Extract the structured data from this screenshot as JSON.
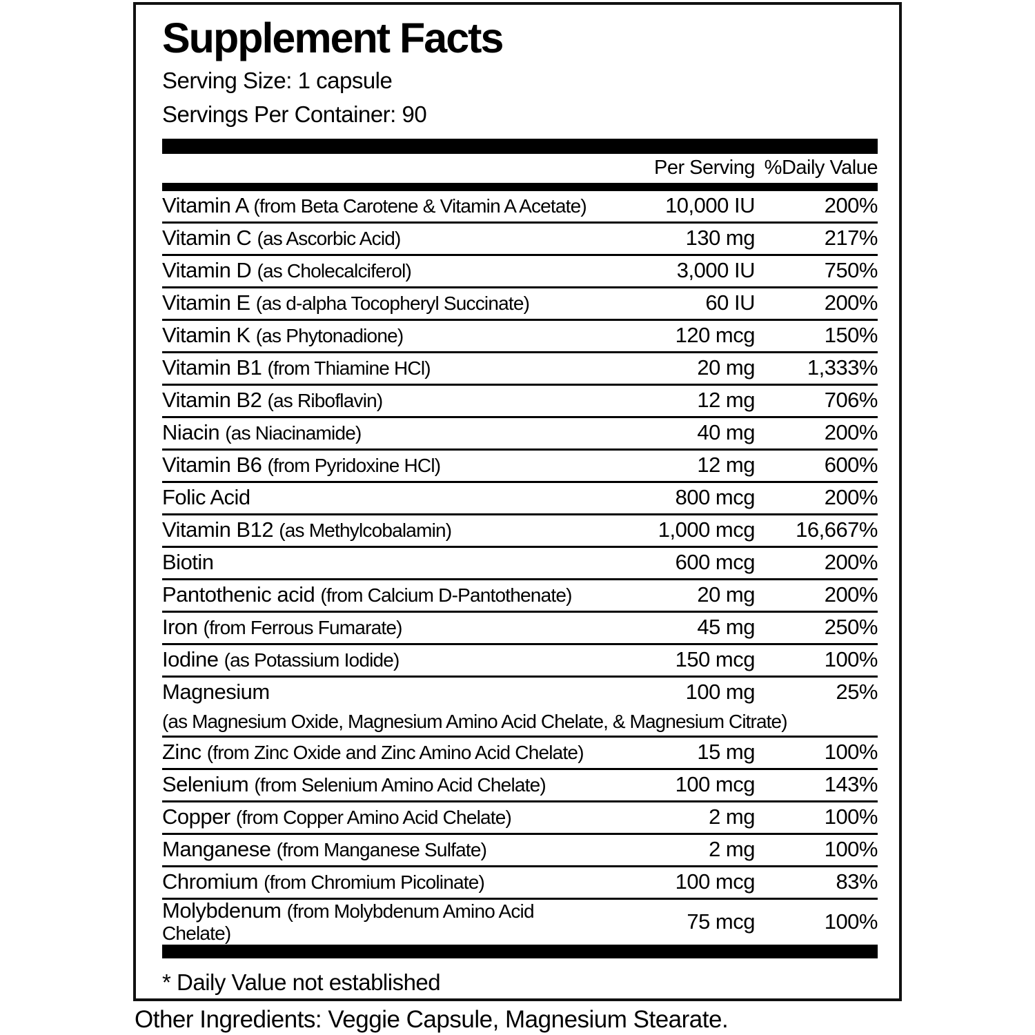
{
  "label": {
    "title": "Supplement Facts",
    "serving_size": "Serving Size: 1 capsule",
    "servings_per_container": "Servings Per Container: 90",
    "columns": {
      "per_serving": "Per Serving",
      "daily_value": "%Daily Value"
    },
    "rows": [
      {
        "name": "Vitamin A",
        "detail": "(from Beta Carotene & Vitamin A Acetate)",
        "amount": "10,000 IU",
        "daily_value": "200%"
      },
      {
        "name": "Vitamin C",
        "detail": "(as Ascorbic Acid)",
        "amount": "130 mg",
        "daily_value": "217%"
      },
      {
        "name": "Vitamin D",
        "detail": "(as Cholecalciferol)",
        "amount": "3,000 IU",
        "daily_value": "750%"
      },
      {
        "name": "Vitamin E",
        "detail": "(as d-alpha Tocopheryl Succinate)",
        "amount": "60 IU",
        "daily_value": "200%"
      },
      {
        "name": "Vitamin K",
        "detail": "(as Phytonadione)",
        "amount": "120 mcg",
        "daily_value": "150%"
      },
      {
        "name": "Vitamin B1",
        "detail": "(from Thiamine HCl)",
        "amount": "20 mg",
        "daily_value": "1,333%"
      },
      {
        "name": "Vitamin B2",
        "detail": "(as Riboflavin)",
        "amount": "12 mg",
        "daily_value": "706%"
      },
      {
        "name": "Niacin",
        "detail": "(as Niacinamide)",
        "amount": "40 mg",
        "daily_value": "200%"
      },
      {
        "name": "Vitamin B6",
        "detail": "(from Pyridoxine HCl)",
        "amount": "12 mg",
        "daily_value": "600%"
      },
      {
        "name": "Folic Acid",
        "detail": "",
        "amount": "800 mcg",
        "daily_value": "200%"
      },
      {
        "name": "Vitamin B12",
        "detail": "(as Methylcobalamin)",
        "amount": "1,000 mcg",
        "daily_value": "16,667%"
      },
      {
        "name": "Biotin",
        "detail": "",
        "amount": "600 mcg",
        "daily_value": "200%"
      },
      {
        "name": "Pantothenic acid",
        "detail": "(from Calcium D-Pantothenate)",
        "amount": "20 mg",
        "daily_value": "200%"
      },
      {
        "name": "Iron",
        "detail": "(from Ferrous Fumarate)",
        "amount": "45 mg",
        "daily_value": "250%"
      },
      {
        "name": "Iodine",
        "detail": "(as Potassium Iodide)",
        "amount": "150 mcg",
        "daily_value": "100%"
      },
      {
        "name": "Magnesium",
        "detail": "",
        "sub_detail": "(as Magnesium Oxide, Magnesium Amino Acid Chelate, & Magnesium Citrate)",
        "amount": "100 mg",
        "daily_value": "25%"
      },
      {
        "name": "Zinc",
        "detail": "(from Zinc Oxide and Zinc Amino Acid Chelate)",
        "amount": "15 mg",
        "daily_value": "100%"
      },
      {
        "name": "Selenium",
        "detail": "(from Selenium Amino Acid Chelate)",
        "amount": "100 mcg",
        "daily_value": "143%"
      },
      {
        "name": "Copper",
        "detail": "(from Copper Amino Acid Chelate)",
        "amount": "2 mg",
        "daily_value": "100%"
      },
      {
        "name": "Manganese",
        "detail": "(from Manganese Sulfate)",
        "amount": "2 mg",
        "daily_value": "100%"
      },
      {
        "name": "Chromium",
        "detail": "(from Chromium Picolinate)",
        "amount": "100 mcg",
        "daily_value": "83%"
      },
      {
        "name": "Molybdenum",
        "detail": "(from Molybdenum Amino Acid Chelate)",
        "amount": "75 mcg",
        "daily_value": "100%"
      }
    ],
    "footnote": "* Daily Value not established",
    "other_ingredients": "Other Ingredients: Veggie Capsule, Magnesium Stearate."
  }
}
